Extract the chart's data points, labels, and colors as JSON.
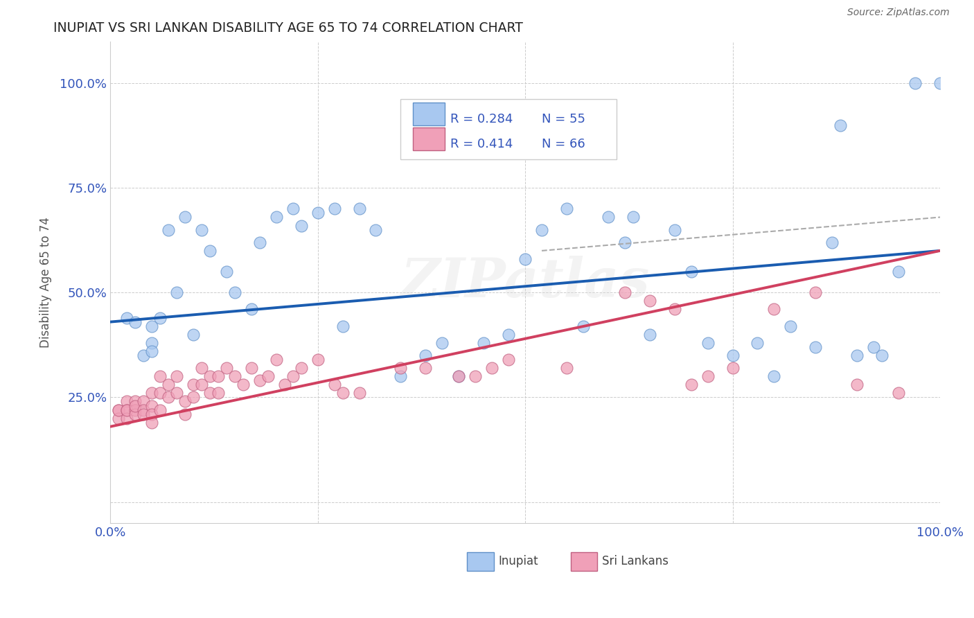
{
  "title": "INUPIAT VS SRI LANKAN DISABILITY AGE 65 TO 74 CORRELATION CHART",
  "source": "Source: ZipAtlas.com",
  "ylabel_label": "Disability Age 65 to 74",
  "inupiat_label": "Inupiat",
  "srilanka_label": "Sri Lankans",
  "xlim": [
    0.0,
    1.0
  ],
  "ylim": [
    -0.05,
    1.1
  ],
  "xticks": [
    0.0,
    0.25,
    0.5,
    0.75,
    1.0
  ],
  "yticks": [
    0.0,
    0.25,
    0.5,
    0.75,
    1.0
  ],
  "xtick_labels": [
    "0.0%",
    "",
    "",
    "",
    "100.0%"
  ],
  "ytick_labels": [
    "",
    "25.0%",
    "50.0%",
    "75.0%",
    "100.0%"
  ],
  "legend_r1": "R = 0.284",
  "legend_n1": "N = 55",
  "legend_r2": "R = 0.414",
  "legend_n2": "N = 66",
  "inupiat_color": "#a8c8f0",
  "srilanka_color": "#f0a0b8",
  "inupiat_line_color": "#1a5cb0",
  "srilanka_line_color": "#d04060",
  "inupiat_x": [
    0.02,
    0.03,
    0.04,
    0.05,
    0.05,
    0.05,
    0.06,
    0.07,
    0.08,
    0.09,
    0.1,
    0.11,
    0.12,
    0.14,
    0.15,
    0.17,
    0.18,
    0.2,
    0.22,
    0.23,
    0.25,
    0.27,
    0.28,
    0.3,
    0.32,
    0.35,
    0.38,
    0.4,
    0.42,
    0.45,
    0.48,
    0.5,
    0.52,
    0.55,
    0.57,
    0.6,
    0.62,
    0.63,
    0.65,
    0.68,
    0.7,
    0.72,
    0.75,
    0.78,
    0.8,
    0.82,
    0.85,
    0.87,
    0.88,
    0.9,
    0.92,
    0.93,
    0.95,
    0.97,
    1.0
  ],
  "inupiat_y": [
    0.44,
    0.43,
    0.35,
    0.38,
    0.36,
    0.42,
    0.44,
    0.65,
    0.5,
    0.68,
    0.4,
    0.65,
    0.6,
    0.55,
    0.5,
    0.46,
    0.62,
    0.68,
    0.7,
    0.66,
    0.69,
    0.7,
    0.42,
    0.7,
    0.65,
    0.3,
    0.35,
    0.38,
    0.3,
    0.38,
    0.4,
    0.58,
    0.65,
    0.7,
    0.42,
    0.68,
    0.62,
    0.68,
    0.4,
    0.65,
    0.55,
    0.38,
    0.35,
    0.38,
    0.3,
    0.42,
    0.37,
    0.62,
    0.9,
    0.35,
    0.37,
    0.35,
    0.55,
    1.0,
    1.0
  ],
  "srilanka_x": [
    0.01,
    0.01,
    0.01,
    0.02,
    0.02,
    0.02,
    0.02,
    0.03,
    0.03,
    0.03,
    0.03,
    0.04,
    0.04,
    0.04,
    0.05,
    0.05,
    0.05,
    0.05,
    0.06,
    0.06,
    0.06,
    0.07,
    0.07,
    0.08,
    0.08,
    0.09,
    0.09,
    0.1,
    0.1,
    0.11,
    0.11,
    0.12,
    0.12,
    0.13,
    0.13,
    0.14,
    0.15,
    0.16,
    0.17,
    0.18,
    0.19,
    0.2,
    0.21,
    0.22,
    0.23,
    0.25,
    0.27,
    0.28,
    0.3,
    0.35,
    0.38,
    0.42,
    0.44,
    0.46,
    0.48,
    0.55,
    0.62,
    0.65,
    0.68,
    0.7,
    0.72,
    0.75,
    0.8,
    0.85,
    0.9,
    0.95
  ],
  "srilanka_y": [
    0.22,
    0.2,
    0.22,
    0.24,
    0.22,
    0.2,
    0.22,
    0.24,
    0.22,
    0.21,
    0.23,
    0.24,
    0.22,
    0.21,
    0.26,
    0.23,
    0.21,
    0.19,
    0.3,
    0.26,
    0.22,
    0.28,
    0.25,
    0.3,
    0.26,
    0.24,
    0.21,
    0.28,
    0.25,
    0.32,
    0.28,
    0.3,
    0.26,
    0.3,
    0.26,
    0.32,
    0.3,
    0.28,
    0.32,
    0.29,
    0.3,
    0.34,
    0.28,
    0.3,
    0.32,
    0.34,
    0.28,
    0.26,
    0.26,
    0.32,
    0.32,
    0.3,
    0.3,
    0.32,
    0.34,
    0.32,
    0.5,
    0.48,
    0.46,
    0.28,
    0.3,
    0.32,
    0.46,
    0.5,
    0.28,
    0.26
  ],
  "inupiat_line": [
    0.0,
    1.0,
    0.43,
    0.6
  ],
  "srilanka_line": [
    0.0,
    1.0,
    0.18,
    0.6
  ],
  "dashed_line": [
    0.52,
    1.0,
    0.6,
    0.68
  ]
}
